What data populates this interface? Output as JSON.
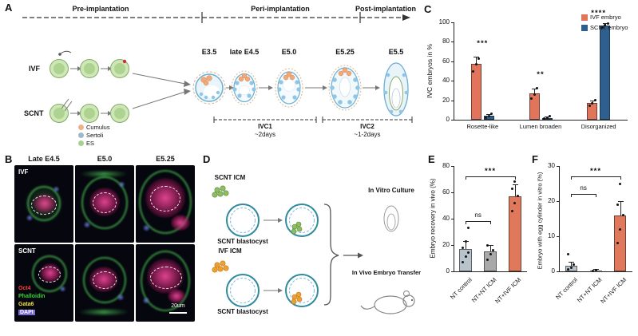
{
  "panel_labels": {
    "a": "A",
    "b": "B",
    "c": "C",
    "d": "D",
    "e": "E",
    "f": "F"
  },
  "panelA": {
    "phases": [
      "Pre-implantation",
      "Peri-implantation",
      "Post-implantation"
    ],
    "stages": [
      "E3.5",
      "late E4.5",
      "E5.0",
      "E5.25",
      "E5.5"
    ],
    "row_labels": [
      "IVF",
      "SCNT"
    ],
    "cell_legend": [
      {
        "label": "Cumulus",
        "color": "#f0b088"
      },
      {
        "label": "Sertoli",
        "color": "#9fb8c8"
      },
      {
        "label": "ES",
        "color": "#a8d08f"
      }
    ],
    "ivc1": {
      "label": "IVC1",
      "duration": "~2days"
    },
    "ivc2": {
      "label": "IVC2",
      "duration": "~1-2days"
    }
  },
  "panelB": {
    "columns": [
      "Late E4.5",
      "E5.0",
      "E5.25"
    ],
    "rows": [
      "IVF",
      "SCNT"
    ],
    "markers": [
      {
        "label": "Oct4",
        "color": "#ff3b3b"
      },
      {
        "label": "Phalloidin",
        "color": "#35d435"
      },
      {
        "label": "Gata6",
        "color": "#f2e035"
      },
      {
        "label": "DAPI",
        "color": "#ffffff",
        "bg": "#7c6bd6"
      }
    ],
    "scale_bar_label": "20um"
  },
  "panelD": {
    "row1_source": "SCNT ICM",
    "row1_blastocyst": "SCNT blastocyst",
    "row2_source": "IVF ICM",
    "row2_blastocyst": "SCNT blastocyst",
    "outcome_in_vitro": "In Vitro Culture",
    "outcome_in_vivo": "In Vivo Embryo Transfer"
  },
  "chart_data": [
    {
      "id": "C",
      "type": "bar",
      "ylabel": "IVC embryos in %",
      "ylim": [
        0,
        100
      ],
      "yticks": [
        0,
        20,
        40,
        60,
        80,
        100
      ],
      "categories": [
        "Rosette-like",
        "Lumen broaden",
        "Disorganized"
      ],
      "series": [
        {
          "name": "IVF embryo",
          "color": "#e0755c",
          "values": [
            57,
            27,
            17
          ],
          "errors": [
            8,
            5,
            3
          ],
          "points": [
            [
              50,
              57,
              63
            ],
            [
              22,
              26,
              32
            ],
            [
              14,
              17,
              20
            ]
          ]
        },
        {
          "name": "SCNT embryo",
          "color": "#2e5f8e",
          "values": [
            4,
            2,
            97
          ],
          "errors": [
            2,
            1,
            2
          ],
          "points": [
            [
              2,
              4,
              6
            ],
            [
              1,
              2,
              4
            ],
            [
              95,
              97,
              99
            ]
          ]
        }
      ],
      "significance": [
        {
          "cat": 0,
          "label": "***",
          "y": 72
        },
        {
          "cat": 1,
          "label": "**",
          "y": 40
        },
        {
          "cat": 2,
          "label": "****",
          "y": 103
        }
      ],
      "legend_position": "top-right",
      "grid": false
    },
    {
      "id": "E",
      "type": "bar",
      "ylabel": "Embryo recovery in vivo (%)",
      "ylim": [
        0,
        80
      ],
      "yticks": [
        0,
        20,
        40,
        60,
        80
      ],
      "categories": [
        "NT control",
        "NT+NT ICM",
        "NT+IVF ICM"
      ],
      "values": [
        17,
        15,
        57
      ],
      "errors": [
        6,
        5,
        9
      ],
      "colors": [
        "#b9c3cc",
        "#a9a9a9",
        "#e0795c"
      ],
      "points": [
        [
          7,
          11,
          14,
          18,
          23,
          33
        ],
        [
          9,
          13,
          16,
          20
        ],
        [
          46,
          52,
          57,
          63,
          68
        ]
      ],
      "significance": [
        {
          "from": 0,
          "to": 1,
          "label": "ns",
          "y": 38
        },
        {
          "from": 0,
          "to": 2,
          "label": "***",
          "y": 72
        }
      ],
      "grid": false
    },
    {
      "id": "F",
      "type": "bar",
      "ylabel": "Embryo with egg cylinder in vitro (%)",
      "ylim": [
        0,
        30
      ],
      "yticks": [
        0,
        10,
        20,
        30
      ],
      "categories": [
        "NT control",
        "NT+NT ICM",
        "NT+IVF ICM"
      ],
      "values": [
        1.5,
        0.3,
        16
      ],
      "errors": [
        1.2,
        0.3,
        4
      ],
      "colors": [
        "#b9c3cc",
        "#a9a9a9",
        "#e0795c"
      ],
      "points": [
        [
          0.5,
          1,
          2,
          5
        ],
        [
          0.2,
          0.4
        ],
        [
          8,
          12,
          16,
          19,
          25
        ]
      ],
      "significance": [
        {
          "from": 0,
          "to": 1,
          "label": "ns",
          "y": 22
        },
        {
          "from": 0,
          "to": 2,
          "label": "***",
          "y": 27
        }
      ],
      "grid": false
    }
  ]
}
